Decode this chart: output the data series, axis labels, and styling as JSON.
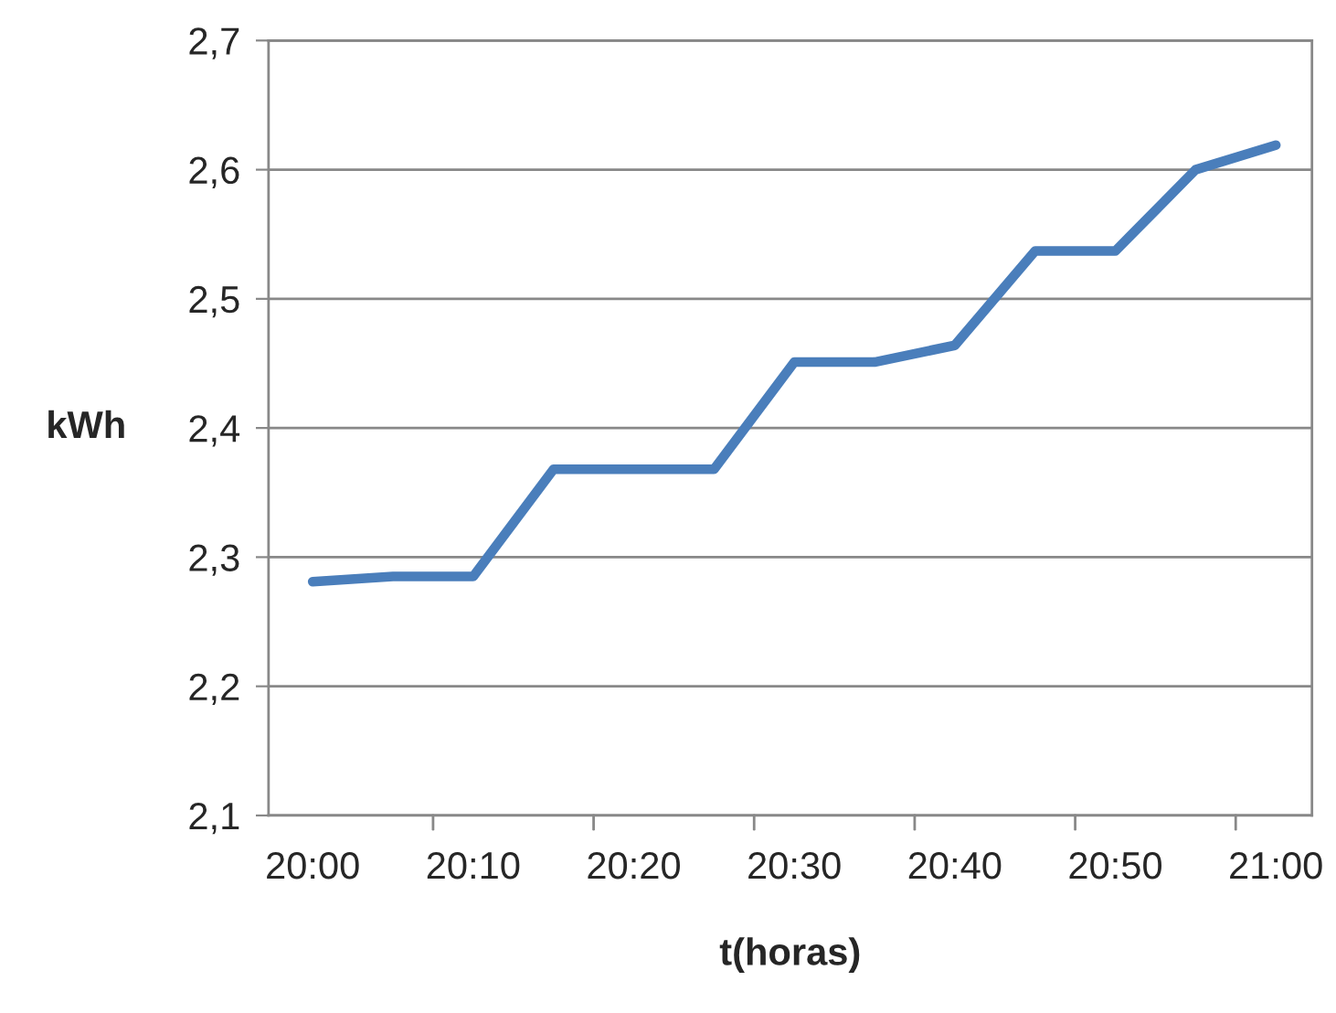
{
  "chart_data": {
    "type": "line",
    "xlabel": "t(horas)",
    "ylabel": "kWh",
    "categories": [
      "20:00",
      null,
      "20:10",
      null,
      "20:20",
      null,
      "20:30",
      null,
      "20:40",
      null,
      "20:50",
      null,
      "21:00"
    ],
    "series": [
      {
        "color": "#4a7ebb",
        "values": [
          2.281,
          2.285,
          2.285,
          2.368,
          2.368,
          2.368,
          2.451,
          2.451,
          2.464,
          2.537,
          2.537,
          2.6,
          2.619
        ]
      }
    ],
    "ylim": [
      2.1,
      2.7
    ],
    "yticks": [
      {
        "value": 2.1,
        "label": "2,1"
      },
      {
        "value": 2.2,
        "label": "2,2"
      },
      {
        "value": 2.3,
        "label": "2,3"
      },
      {
        "value": 2.4,
        "label": "2,4"
      },
      {
        "value": 2.5,
        "label": "2,5"
      },
      {
        "value": 2.6,
        "label": "2,6"
      },
      {
        "value": 2.7,
        "label": "2,7"
      }
    ],
    "grid": "y",
    "legend": false,
    "marker": "none",
    "line_style": "solid"
  }
}
